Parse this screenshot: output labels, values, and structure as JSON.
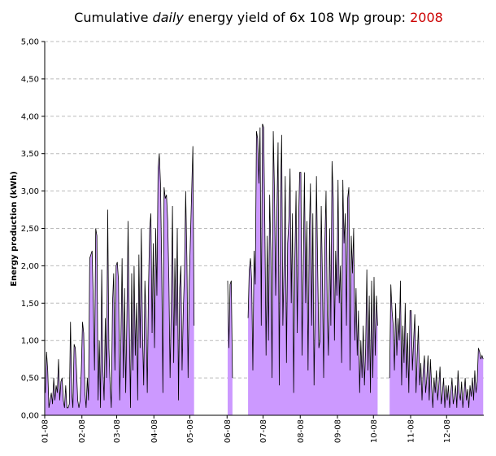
{
  "chart_data": {
    "type": "area",
    "title": [
      "Cumulative ",
      "daily",
      " energy yield of 6x 108 Wp group: ",
      "2008"
    ],
    "title_highlight_color": "#cc0000",
    "ylabel": "Energy production (kWh)",
    "color": "#cc99ff",
    "line_color": "#000000",
    "grid": true,
    "ylim": [
      0,
      5
    ],
    "yticks": [
      {
        "value": 0,
        "label": "0,00"
      },
      {
        "value": 0.5,
        "label": "0,50"
      },
      {
        "value": 1,
        "label": "1,00"
      },
      {
        "value": 1.5,
        "label": "1,50"
      },
      {
        "value": 2,
        "label": "2,00"
      },
      {
        "value": 2.5,
        "label": "2,50"
      },
      {
        "value": 3,
        "label": "3,00"
      },
      {
        "value": 3.5,
        "label": "3,50"
      },
      {
        "value": 4,
        "label": "4,00"
      },
      {
        "value": 4.5,
        "label": "4,50"
      },
      {
        "value": 5,
        "label": "5,00"
      }
    ],
    "categories": [
      "01-08",
      "02-08",
      "03-08",
      "04-08",
      "05-08",
      "06-08",
      "07-08",
      "08-08",
      "09-08",
      "10-08",
      "11-08",
      "12-08"
    ],
    "values": [
      [
        0.3,
        0.85,
        0.6,
        0.1,
        0.2,
        0.3,
        0.15,
        0.5,
        0.2,
        0.4,
        0.3,
        0.75,
        0.2,
        0.45,
        0.5,
        0.2,
        0.1,
        0.4,
        0.1,
        0.1,
        0.15,
        1.25,
        0.3,
        0.1,
        0.95,
        0.9,
        0.6,
        0.2,
        0.1,
        0.2,
        0.6
      ],
      [
        1.25,
        1.1,
        0.3,
        0.1,
        0.5,
        0.2,
        2.1,
        2.15,
        2.2,
        1.5,
        0.6,
        2.5,
        2.4,
        0.2,
        1.0,
        0.1,
        1.95,
        0.6,
        0.2,
        1.3,
        0.5,
        2.75,
        0.9,
        0.4,
        0.1,
        1.5,
        1.9,
        0.6,
        2.0
      ],
      [
        2.05,
        1.8,
        0.2,
        1.0,
        2.1,
        0.5,
        1.7,
        0.3,
        1.3,
        2.6,
        1.2,
        0.1,
        1.9,
        0.6,
        2.0,
        0.8,
        1.5,
        0.2,
        2.15,
        0.9,
        2.5,
        1.1,
        0.4,
        1.8,
        1.3,
        0.3,
        1.7,
        2.5,
        2.7,
        1.1,
        2.3
      ],
      [
        0.9,
        2.5,
        1.6,
        3.3,
        3.5,
        3.1,
        2.0,
        0.3,
        3.05,
        2.9,
        2.95,
        2.6,
        1.8,
        0.5,
        1.5,
        2.8,
        0.7,
        2.1,
        1.2,
        2.5,
        0.2,
        1.7,
        2.0,
        0.6,
        1.4,
        1.9,
        3.0,
        2.1,
        0.5,
        1.8
      ],
      [
        2.4,
        3.0,
        3.6,
        1.2,
        null,
        null,
        null,
        null,
        null,
        null,
        null,
        null,
        null,
        null,
        null,
        null,
        null,
        null,
        null,
        null,
        null,
        null,
        null,
        null,
        null,
        null,
        null,
        null,
        null,
        null,
        null
      ],
      [
        1.8,
        0.9,
        1.75,
        1.8,
        0.5,
        null,
        null,
        null,
        null,
        null,
        null,
        null,
        null,
        null,
        null,
        null,
        null,
        1.3,
        1.95,
        2.1,
        1.8,
        0.6,
        2.2,
        1.75,
        3.8,
        3.7,
        3.1,
        3.85,
        1.2,
        3.9
      ],
      [
        3.85,
        2.5,
        0.8,
        2.4,
        1.0,
        2.95,
        2.2,
        0.5,
        3.8,
        3.0,
        1.6,
        2.7,
        3.65,
        0.4,
        2.9,
        3.75,
        1.2,
        2.0,
        3.2,
        0.7,
        2.3,
        2.6,
        3.3,
        1.5,
        2.7,
        0.3,
        2.1,
        3.0,
        1.1,
        2.5,
        3.25
      ],
      [
        3.25,
        0.8,
        2.0,
        3.25,
        1.5,
        2.6,
        0.6,
        2.4,
        3.1,
        1.2,
        2.7,
        0.4,
        1.5,
        3.2,
        2.0,
        0.9,
        1.0,
        2.8,
        1.8,
        0.5,
        2.3,
        3.0,
        1.4,
        0.8,
        2.5,
        1.2,
        3.4,
        2.9,
        1.0,
        2.2,
        1.6
      ],
      [
        3.15,
        1.5,
        2.0,
        0.7,
        3.15,
        2.3,
        2.7,
        1.2,
        2.9,
        3.05,
        0.6,
        2.4,
        1.9,
        2.5,
        1.0,
        1.7,
        0.8,
        1.4,
        0.3,
        1.0,
        0.5,
        1.2,
        0.4,
        0.9,
        1.95,
        0.6,
        1.6,
        0.3,
        1.8,
        0.5
      ],
      [
        1.85,
        0.8,
        1.6,
        1.2,
        null,
        null,
        null,
        null,
        null,
        null,
        null,
        null,
        null,
        0.5,
        1.75,
        1.4,
        1.2,
        0.6,
        1.5,
        0.8,
        1.3,
        1.0,
        1.8,
        0.4,
        1.2,
        0.7,
        1.5,
        0.5,
        1.1,
        0.3,
        1.4
      ],
      [
        1.4,
        0.6,
        1.0,
        1.35,
        0.3,
        0.8,
        1.2,
        0.4,
        0.7,
        0.2,
        0.6,
        0.8,
        0.3,
        0.5,
        0.8,
        0.2,
        0.75,
        0.4,
        0.1,
        0.5,
        0.3,
        0.6,
        0.2,
        0.4,
        0.65,
        0.15,
        0.3,
        0.5,
        0.1,
        0.4
      ],
      [
        0.2,
        0.4,
        0.1,
        0.3,
        0.5,
        0.15,
        0.25,
        0.4,
        0.1,
        0.6,
        0.3,
        0.2,
        0.45,
        0.1,
        0.3,
        0.5,
        0.2,
        0.35,
        0.1,
        0.4,
        0.25,
        0.5,
        0.2,
        0.6,
        0.3,
        0.45,
        0.9,
        0.85,
        0.75,
        0.8,
        0.75
      ]
    ]
  }
}
